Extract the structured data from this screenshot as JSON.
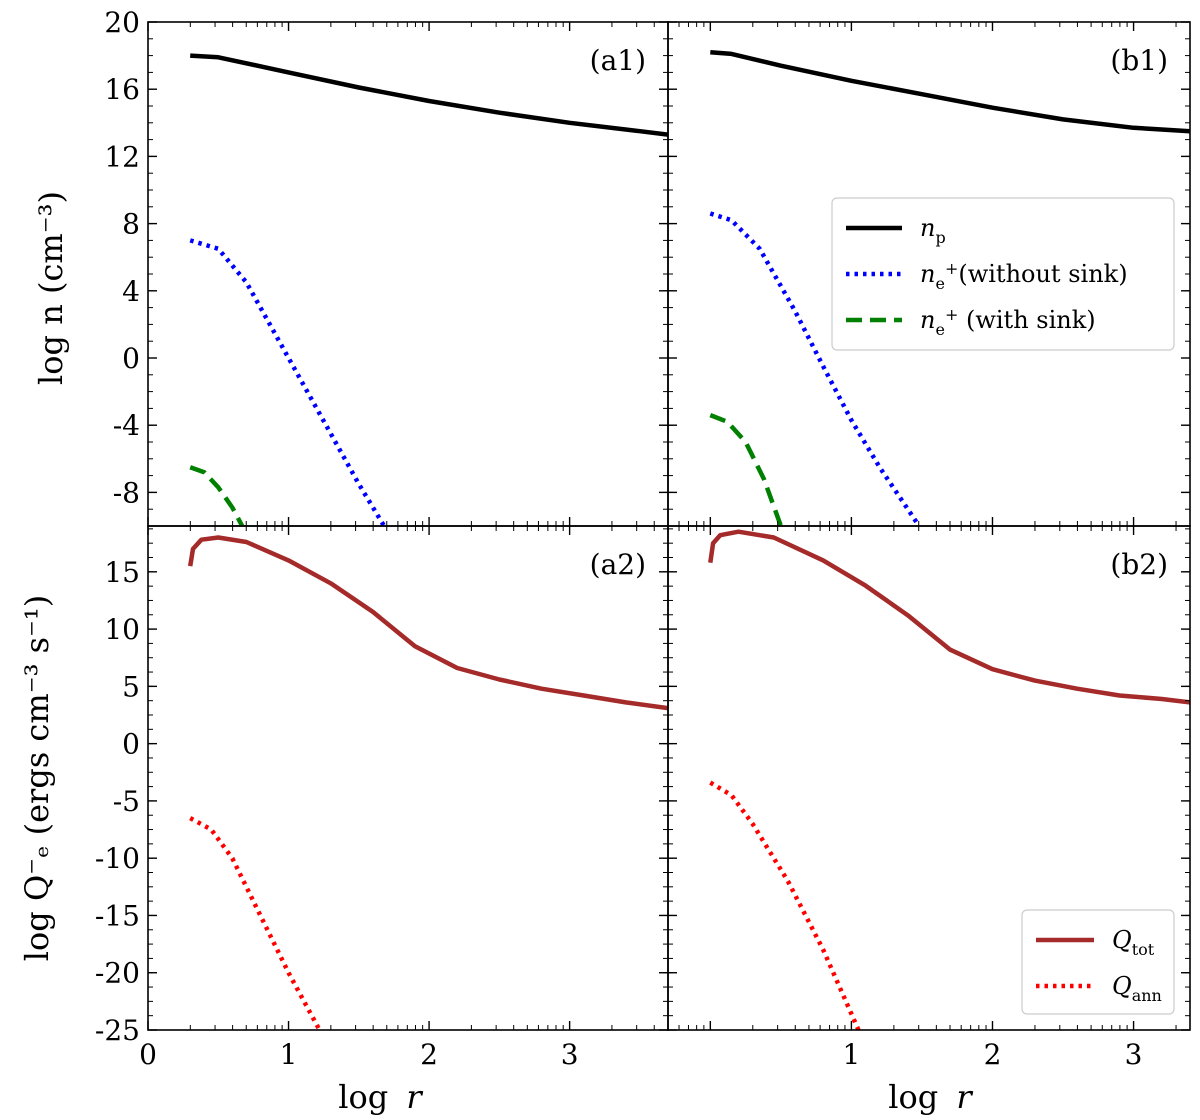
{
  "figure": {
    "xlabel_prefix": "log",
    "xlabel_var": "r",
    "ylabel_top": "log n (cm⁻³)",
    "ylabel_bottom": "log Q⁻ₑ (ergs cm⁻³ s⁻¹)"
  },
  "chart_data": [
    {
      "type": "line",
      "panel": "(a1)",
      "xlim": [
        0,
        3.7
      ],
      "ylim": [
        -10,
        20
      ],
      "yticks": [
        20,
        16,
        12,
        8,
        4,
        0,
        -4,
        -8
      ],
      "series": [
        {
          "name": "n_p",
          "color": "#000000",
          "style": "solid",
          "x": [
            0.3,
            0.5,
            1.0,
            1.5,
            2.0,
            2.5,
            3.0,
            3.5,
            3.7
          ],
          "y": [
            18.0,
            17.9,
            17.0,
            16.1,
            15.3,
            14.6,
            14.0,
            13.5,
            13.3
          ]
        },
        {
          "name": "n_e+ (without sink)",
          "color": "#0000ff",
          "style": "dotted",
          "x": [
            0.3,
            0.5,
            0.7,
            0.9,
            1.1,
            1.3,
            1.5,
            1.68
          ],
          "y": [
            7.0,
            6.5,
            4.5,
            1.5,
            -1.5,
            -4.5,
            -7.5,
            -10.0
          ]
        },
        {
          "name": "n_e+ (with sink)",
          "color": "#008000",
          "style": "dashed",
          "x": [
            0.3,
            0.4,
            0.5,
            0.6,
            0.67
          ],
          "y": [
            -6.5,
            -6.8,
            -7.7,
            -8.9,
            -10.0
          ]
        }
      ]
    },
    {
      "type": "line",
      "panel": "(b1)",
      "xlim": [
        -0.3,
        3.4
      ],
      "ylim": [
        -10,
        20
      ],
      "yticks": [
        20,
        16,
        12,
        8,
        4,
        0,
        -4,
        -8
      ],
      "series": [
        {
          "name": "n_p",
          "color": "#000000",
          "style": "solid",
          "x": [
            0.0,
            0.15,
            0.5,
            1.0,
            1.5,
            2.0,
            2.5,
            3.0,
            3.4
          ],
          "y": [
            18.2,
            18.1,
            17.4,
            16.5,
            15.7,
            14.9,
            14.2,
            13.7,
            13.5
          ]
        },
        {
          "name": "n_e+ (without sink)",
          "color": "#0000ff",
          "style": "dotted",
          "x": [
            0.0,
            0.15,
            0.35,
            0.6,
            0.8,
            1.0,
            1.2,
            1.48
          ],
          "y": [
            8.6,
            8.2,
            6.5,
            2.8,
            -0.5,
            -3.7,
            -6.5,
            -10.0
          ]
        },
        {
          "name": "n_e+ (with sink)",
          "color": "#008000",
          "style": "dashed",
          "x": [
            0.0,
            0.12,
            0.25,
            0.38,
            0.5
          ],
          "y": [
            -3.4,
            -3.8,
            -5.0,
            -7.2,
            -10.0
          ]
        }
      ]
    },
    {
      "type": "line",
      "panel": "(a2)",
      "xlim": [
        0,
        3.7
      ],
      "ylim": [
        -25,
        19
      ],
      "yticks": [
        15,
        10,
        5,
        0,
        -5,
        -10,
        -15,
        -20,
        -25
      ],
      "xticks": [
        0,
        1,
        2,
        3
      ],
      "series": [
        {
          "name": "Q_tot",
          "color": "#a52a2a",
          "style": "solid",
          "x": [
            0.3,
            0.32,
            0.38,
            0.5,
            0.7,
            1.0,
            1.3,
            1.6,
            1.9,
            2.2,
            2.5,
            2.8,
            3.1,
            3.4,
            3.7
          ],
          "y": [
            15.5,
            17.0,
            17.8,
            18.0,
            17.6,
            16.0,
            14.0,
            11.5,
            8.5,
            6.6,
            5.6,
            4.8,
            4.2,
            3.6,
            3.1
          ]
        },
        {
          "name": "Q_ann",
          "color": "#ff0000",
          "style": "dotted",
          "x": [
            0.3,
            0.45,
            0.6,
            0.8,
            1.0,
            1.22
          ],
          "y": [
            -6.5,
            -7.5,
            -10.0,
            -15.0,
            -20.0,
            -25.0
          ]
        }
      ]
    },
    {
      "type": "line",
      "panel": "(b2)",
      "xlim": [
        -0.3,
        3.4
      ],
      "ylim": [
        -25,
        19
      ],
      "yticks": [
        15,
        10,
        5,
        0,
        -5,
        -10,
        -15,
        -20,
        -25
      ],
      "xticks": [
        1,
        2,
        3
      ],
      "series": [
        {
          "name": "Q_tot",
          "color": "#a52a2a",
          "style": "solid",
          "x": [
            0.0,
            0.02,
            0.07,
            0.2,
            0.45,
            0.8,
            1.1,
            1.4,
            1.7,
            2.0,
            2.3,
            2.6,
            2.9,
            3.2,
            3.4
          ],
          "y": [
            15.8,
            17.5,
            18.2,
            18.5,
            18.0,
            16.0,
            13.8,
            11.2,
            8.2,
            6.5,
            5.5,
            4.8,
            4.2,
            3.9,
            3.6
          ]
        },
        {
          "name": "Q_ann",
          "color": "#ff0000",
          "style": "dotted",
          "x": [
            0.0,
            0.15,
            0.3,
            0.55,
            0.8,
            1.05
          ],
          "y": [
            -3.4,
            -4.5,
            -7.0,
            -12.0,
            -18.0,
            -25.0
          ]
        }
      ]
    }
  ],
  "legend_top": {
    "entries": [
      {
        "sym": "n",
        "sub": "p",
        "sup": "",
        "rest": "",
        "color": "#000000",
        "style": "solid"
      },
      {
        "sym": "n",
        "sub": "e",
        "sup": "+",
        "rest": "(without sink)",
        "color": "#0000ff",
        "style": "dotted"
      },
      {
        "sym": "n",
        "sub": "e",
        "sup": "+",
        "rest": " (with sink)",
        "color": "#008000",
        "style": "dashed"
      }
    ]
  },
  "legend_bottom": {
    "entries": [
      {
        "sym": "Q",
        "sub": "tot",
        "color": "#a52a2a",
        "style": "solid"
      },
      {
        "sym": "Q",
        "sub": "ann",
        "color": "#ff0000",
        "style": "dotted"
      }
    ]
  }
}
